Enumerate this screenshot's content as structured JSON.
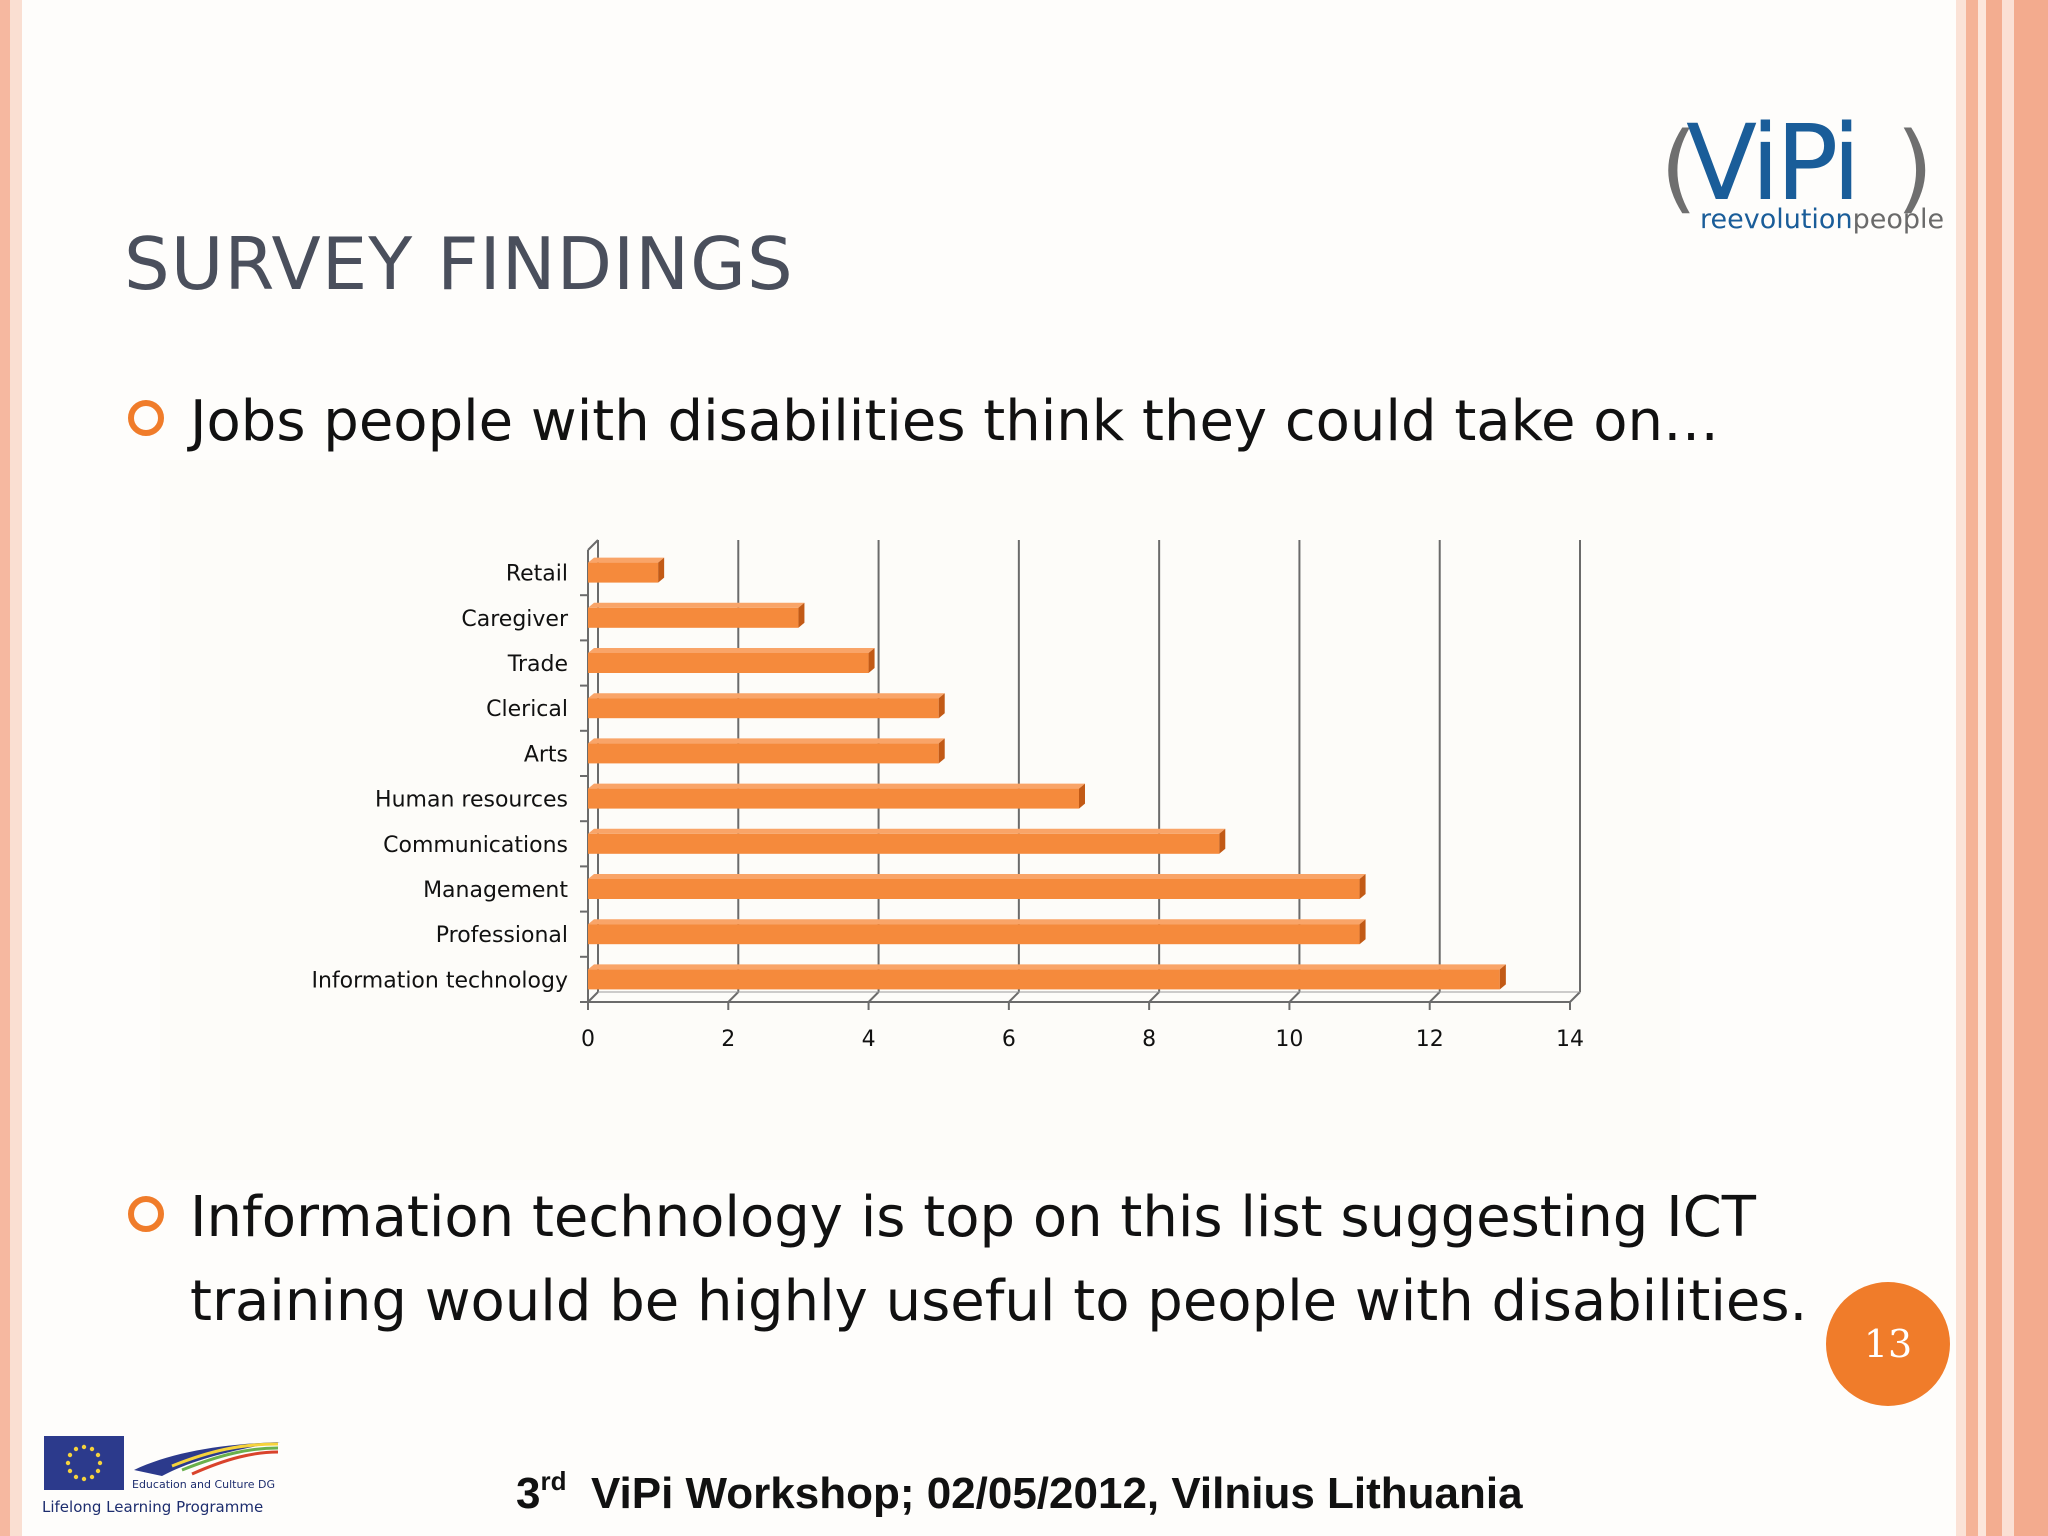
{
  "slide": {
    "title": "SURVEY FINDINGS",
    "bullet1": "Jobs people with disabilities think they could take on…",
    "bullet2": "Information technology is top on this list suggesting ICT training would be highly useful to people with disabilities.",
    "page_number": "13",
    "footer_sup": "rd",
    "footer_num": "3",
    "footer_text": "ViPi Workshop; 02/05/2012, Vilnius Lithuania"
  },
  "logo": {
    "brand": "ViPi",
    "tagline_part1": "reevolution",
    "tagline_part2": "people"
  },
  "eu_logo": {
    "dg": "Education and Culture DG",
    "programme": "Lifelong Learning Programme"
  },
  "colors": {
    "accent": "#f07c2a",
    "bar": "#f58a3c",
    "bar_side": "#c25a16"
  },
  "chart_data": {
    "type": "bar",
    "orientation": "horizontal",
    "categories": [
      "Retail",
      "Caregiver",
      "Trade",
      "Clerical",
      "Arts",
      "Human resources",
      "Communications",
      "Management",
      "Professional",
      "Information technology"
    ],
    "values": [
      1,
      3,
      4,
      5,
      5,
      7,
      9,
      11,
      11,
      13
    ],
    "xlim": [
      0,
      14
    ],
    "xticks": [
      0,
      2,
      4,
      6,
      8,
      10,
      12,
      14
    ],
    "grid": true,
    "title": "",
    "xlabel": "",
    "ylabel": ""
  }
}
